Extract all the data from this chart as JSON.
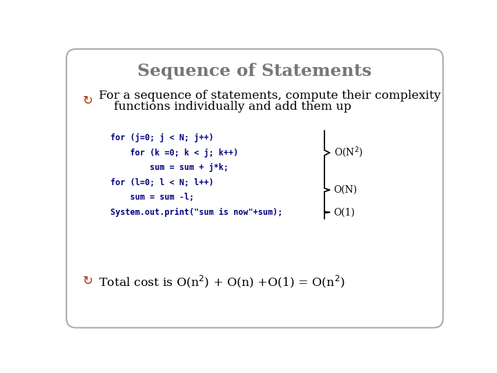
{
  "title": "Sequence of Statements",
  "title_color": "#777777",
  "title_fontsize": 18,
  "background_color": "#ffffff",
  "bullet_color": "#aa3300",
  "bullet1_line1": "For a sequence of statements, compute their complexity",
  "bullet1_line2": "    functions individually and add them up",
  "bullet2_text": "Total cost is O(n²) + O(n) +O(1) = O(n²)",
  "code_lines": [
    "for (j=0; j < N; j++)",
    "    for (k =0; k < j; k++)",
    "        sum = sum + j*k;",
    "for (l=0; l < N; l++)",
    "    sum = sum -l;",
    "System.out.print(\"sum is now\"+sum);"
  ],
  "code_color": "#000080",
  "code_fontsize": 8.5,
  "complexity_color": "#000000",
  "brace_color": "#000000",
  "border_color": "#aaaaaa"
}
